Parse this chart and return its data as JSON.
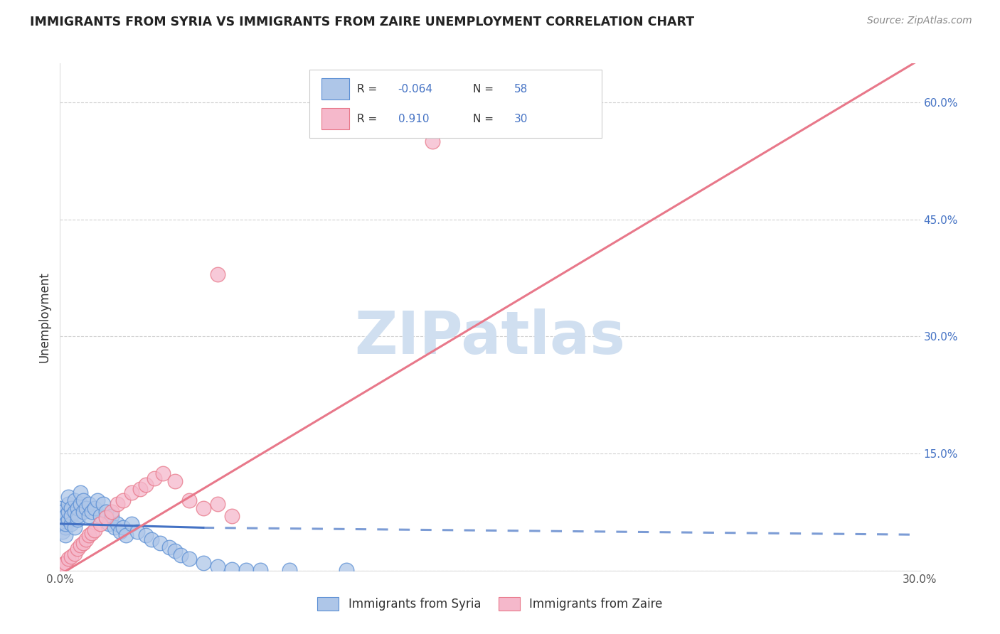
{
  "title": "IMMIGRANTS FROM SYRIA VS IMMIGRANTS FROM ZAIRE UNEMPLOYMENT CORRELATION CHART",
  "source": "Source: ZipAtlas.com",
  "ylabel": "Unemployment",
  "xlim": [
    0.0,
    0.3
  ],
  "ylim": [
    0.0,
    0.65
  ],
  "ytick_vals": [
    0.0,
    0.15,
    0.3,
    0.45,
    0.6
  ],
  "ytick_labels_right": [
    "",
    "15.0%",
    "30.0%",
    "45.0%",
    "60.0%"
  ],
  "xtick_vals": [
    0.0,
    0.05,
    0.1,
    0.15,
    0.2,
    0.25,
    0.3
  ],
  "xtick_labels": [
    "0.0%",
    "",
    "",
    "",
    "",
    "",
    "30.0%"
  ],
  "legend_r_syria": "-0.064",
  "legend_n_syria": "58",
  "legend_r_zaire": "0.910",
  "legend_n_zaire": "30",
  "syria_face_color": "#aec6e8",
  "zaire_face_color": "#f5b8cb",
  "syria_edge_color": "#5b8fd4",
  "zaire_edge_color": "#e8788a",
  "syria_line_color": "#4472c4",
  "zaire_line_color": "#e8788a",
  "grid_color": "#cccccc",
  "background_color": "#ffffff",
  "title_color": "#222222",
  "source_color": "#888888",
  "axis_label_color": "#333333",
  "right_tick_color": "#4472c4",
  "watermark_color": "#d0dff0",
  "syria_x": [
    0.0,
    0.0,
    0.001,
    0.001,
    0.001,
    0.002,
    0.002,
    0.002,
    0.002,
    0.003,
    0.003,
    0.003,
    0.003,
    0.004,
    0.004,
    0.004,
    0.005,
    0.005,
    0.005,
    0.006,
    0.006,
    0.006,
    0.007,
    0.007,
    0.008,
    0.008,
    0.009,
    0.01,
    0.01,
    0.011,
    0.012,
    0.013,
    0.014,
    0.015,
    0.016,
    0.017,
    0.018,
    0.019,
    0.02,
    0.021,
    0.022,
    0.023,
    0.025,
    0.027,
    0.03,
    0.032,
    0.035,
    0.038,
    0.04,
    0.042,
    0.045,
    0.05,
    0.055,
    0.06,
    0.065,
    0.07,
    0.08,
    0.1
  ],
  "syria_y": [
    0.06,
    0.08,
    0.05,
    0.065,
    0.075,
    0.055,
    0.07,
    0.045,
    0.06,
    0.065,
    0.075,
    0.085,
    0.095,
    0.06,
    0.08,
    0.07,
    0.055,
    0.075,
    0.09,
    0.065,
    0.08,
    0.07,
    0.085,
    0.1,
    0.075,
    0.09,
    0.08,
    0.07,
    0.085,
    0.075,
    0.08,
    0.09,
    0.07,
    0.085,
    0.075,
    0.06,
    0.07,
    0.055,
    0.06,
    0.05,
    0.055,
    0.045,
    0.06,
    0.05,
    0.045,
    0.04,
    0.035,
    0.03,
    0.025,
    0.02,
    0.015,
    0.01,
    0.005,
    0.002,
    0.001,
    0.001,
    0.001,
    0.001
  ],
  "zaire_x": [
    0.0,
    0.001,
    0.002,
    0.003,
    0.004,
    0.005,
    0.006,
    0.007,
    0.008,
    0.009,
    0.01,
    0.011,
    0.012,
    0.014,
    0.016,
    0.018,
    0.02,
    0.022,
    0.025,
    0.028,
    0.03,
    0.033,
    0.036,
    0.04,
    0.045,
    0.05,
    0.055,
    0.06,
    0.13,
    0.055
  ],
  "zaire_y": [
    0.005,
    0.008,
    0.01,
    0.015,
    0.018,
    0.022,
    0.028,
    0.033,
    0.035,
    0.04,
    0.045,
    0.048,
    0.052,
    0.06,
    0.068,
    0.075,
    0.085,
    0.09,
    0.1,
    0.105,
    0.11,
    0.118,
    0.125,
    0.115,
    0.09,
    0.08,
    0.38,
    0.07,
    0.55,
    0.085
  ],
  "syria_trend_x0": 0.0,
  "syria_trend_x_solid": 0.05,
  "syria_trend_x1": 0.3,
  "syria_trend_y0": 0.06,
  "syria_trend_y_mid": 0.055,
  "syria_trend_y1": 0.046,
  "zaire_trend_x0": 0.0,
  "zaire_trend_x1": 0.3,
  "zaire_trend_y0": -0.005,
  "zaire_trend_y1": 0.655
}
